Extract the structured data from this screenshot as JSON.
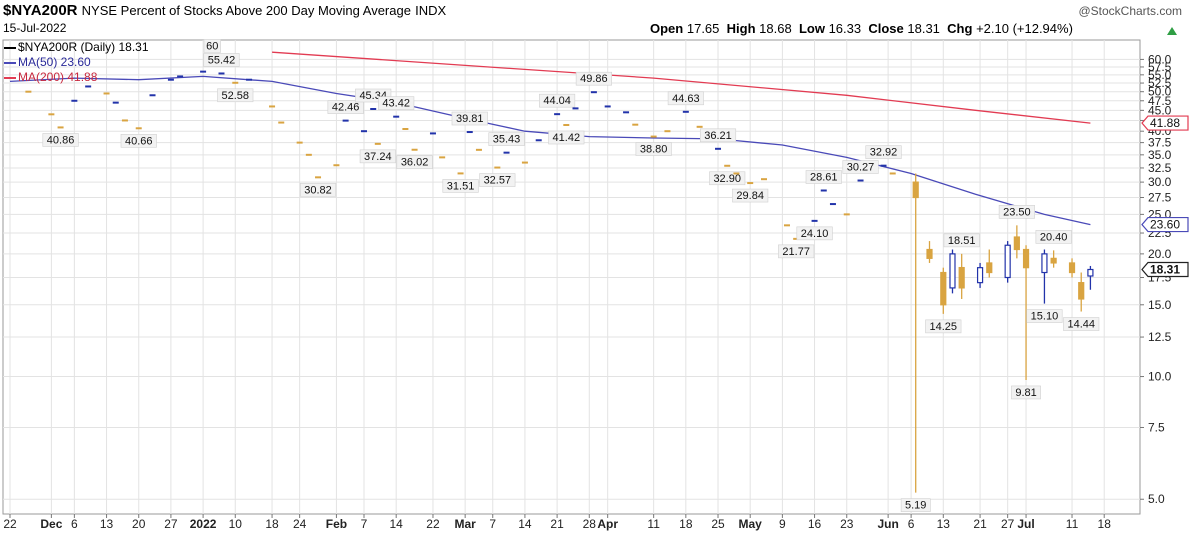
{
  "header": {
    "symbol": "$NYA200R",
    "description": "NYSE Percent of Stocks Above 200 Day Moving Average",
    "exchange": "INDX",
    "date": "15-Jul-2022",
    "brand": "@StockCharts.com",
    "open_label": "Open",
    "open": "17.65",
    "high_label": "High",
    "high": "18.68",
    "low_label": "Low",
    "low": "16.33",
    "close_label": "Close",
    "close": "18.31",
    "chg_label": "Chg",
    "chg": "+2.10 (+12.94%)"
  },
  "legend": {
    "main": "$NYA200R (Daily) 18.31",
    "ma50": "MA(50) 23.60",
    "ma200": "MA(200) 41.88"
  },
  "colors": {
    "up": "#2233aa",
    "down": "#d9a441",
    "ma50": "#4a4ab8",
    "ma200": "#e23b52",
    "grid": "#e3e3e3"
  },
  "chart_data": {
    "type": "candlestick",
    "y_scale": "log",
    "ylim": [
      4.6,
      64
    ],
    "y_ticks": [
      5.0,
      7.5,
      10.0,
      12.5,
      15.0,
      17.5,
      20.0,
      22.5,
      25.0,
      27.5,
      30.0,
      32.5,
      35.0,
      37.5,
      40.0,
      42.5,
      45.0,
      47.5,
      50.0,
      52.5,
      55.0,
      57.5,
      60.0
    ],
    "y_tick_labels": [
      "5.0",
      "7.5",
      "10.0",
      "12.5",
      "15.0",
      "17.5",
      "20.0",
      "22.5",
      "25.0",
      "27.5",
      "30.0",
      "32.5",
      "35.0",
      "37.5",
      "40.0",
      "42.5",
      "45.0",
      "47.5",
      "50.0",
      "52.5",
      "55.0",
      "57.5",
      "60.0"
    ],
    "x_labels": [
      {
        "date": "2021-11-22",
        "label": "22",
        "bold": false
      },
      {
        "date": "2021-12-01",
        "label": "Dec",
        "bold": true
      },
      {
        "date": "2021-12-06",
        "label": "6",
        "bold": false
      },
      {
        "date": "2021-12-13",
        "label": "13",
        "bold": false
      },
      {
        "date": "2021-12-20",
        "label": "20",
        "bold": false
      },
      {
        "date": "2021-12-27",
        "label": "27",
        "bold": false
      },
      {
        "date": "2022-01-03",
        "label": "2022",
        "bold": true
      },
      {
        "date": "2022-01-10",
        "label": "10",
        "bold": false
      },
      {
        "date": "2022-01-18",
        "label": "18",
        "bold": false
      },
      {
        "date": "2022-01-24",
        "label": "24",
        "bold": false
      },
      {
        "date": "2022-02-01",
        "label": "Feb",
        "bold": true
      },
      {
        "date": "2022-02-07",
        "label": "7",
        "bold": false
      },
      {
        "date": "2022-02-14",
        "label": "14",
        "bold": false
      },
      {
        "date": "2022-02-22",
        "label": "22",
        "bold": false
      },
      {
        "date": "2022-03-01",
        "label": "Mar",
        "bold": true
      },
      {
        "date": "2022-03-07",
        "label": "7",
        "bold": false
      },
      {
        "date": "2022-03-14",
        "label": "14",
        "bold": false
      },
      {
        "date": "2022-03-21",
        "label": "21",
        "bold": false
      },
      {
        "date": "2022-03-28",
        "label": "28",
        "bold": false
      },
      {
        "date": "2022-04-01",
        "label": "Apr",
        "bold": true
      },
      {
        "date": "2022-04-11",
        "label": "11",
        "bold": false
      },
      {
        "date": "2022-04-18",
        "label": "18",
        "bold": false
      },
      {
        "date": "2022-04-25",
        "label": "25",
        "bold": false
      },
      {
        "date": "2022-05-02",
        "label": "May",
        "bold": true
      },
      {
        "date": "2022-05-09",
        "label": "9",
        "bold": false
      },
      {
        "date": "2022-05-16",
        "label": "16",
        "bold": false
      },
      {
        "date": "2022-05-23",
        "label": "23",
        "bold": false
      },
      {
        "date": "2022-06-01",
        "label": "Jun",
        "bold": true
      },
      {
        "date": "2022-06-06",
        "label": "6",
        "bold": false
      },
      {
        "date": "2022-06-13",
        "label": "13",
        "bold": false
      },
      {
        "date": "2022-06-21",
        "label": "21",
        "bold": false
      },
      {
        "date": "2022-06-27",
        "label": "27",
        "bold": false
      },
      {
        "date": "2022-07-01",
        "label": "Jul",
        "bold": true
      },
      {
        "date": "2022-07-11",
        "label": "11",
        "bold": false
      },
      {
        "date": "2022-07-18",
        "label": "18",
        "bold": false
      }
    ],
    "date_range": [
      "2021-11-22",
      "2022-07-21"
    ],
    "ohlc": [
      {
        "date": "2021-11-26",
        "close": 50.0
      },
      {
        "date": "2021-12-01",
        "close": 44.0
      },
      {
        "date": "2021-12-03",
        "close": 40.86,
        "label": "40.86"
      },
      {
        "date": "2021-12-06",
        "close": 47.5,
        "dir": "up"
      },
      {
        "date": "2021-12-09",
        "close": 51.5,
        "dir": "up"
      },
      {
        "date": "2021-12-13",
        "close": 49.5
      },
      {
        "date": "2021-12-15",
        "close": 47.0,
        "dir": "up"
      },
      {
        "date": "2021-12-17",
        "close": 42.5
      },
      {
        "date": "2021-12-20",
        "close": 40.66,
        "label": "40.66"
      },
      {
        "date": "2021-12-23",
        "close": 49.0,
        "dir": "up"
      },
      {
        "date": "2021-12-27",
        "close": 53.5,
        "dir": "up"
      },
      {
        "date": "2021-12-29",
        "close": 54.5,
        "dir": "up"
      },
      {
        "date": "2022-01-03",
        "close": 56.0,
        "dir": "up"
      },
      {
        "date": "2022-01-05",
        "close": 60.0,
        "dir": "up",
        "label": "60"
      },
      {
        "date": "2022-01-07",
        "close": 55.42,
        "dir": "up",
        "label": "55.42"
      },
      {
        "date": "2022-01-10",
        "close": 52.58,
        "label": "52.58"
      },
      {
        "date": "2022-01-13",
        "close": 53.5,
        "dir": "up"
      },
      {
        "date": "2022-01-18",
        "close": 46.0
      },
      {
        "date": "2022-01-20",
        "close": 42.0
      },
      {
        "date": "2022-01-24",
        "close": 37.5
      },
      {
        "date": "2022-01-26",
        "close": 35.0
      },
      {
        "date": "2022-01-28",
        "close": 30.82,
        "label": "30.82"
      },
      {
        "date": "2022-02-01",
        "close": 33.0
      },
      {
        "date": "2022-02-03",
        "close": 42.46,
        "dir": "up",
        "label": "42.46"
      },
      {
        "date": "2022-02-07",
        "close": 40.0,
        "dir": "up"
      },
      {
        "date": "2022-02-09",
        "close": 45.34,
        "dir": "up",
        "label": "45.34"
      },
      {
        "date": "2022-02-10",
        "close": 37.24,
        "label": "37.24"
      },
      {
        "date": "2022-02-14",
        "close": 43.42,
        "dir": "up",
        "label": "43.42"
      },
      {
        "date": "2022-02-16",
        "close": 40.5
      },
      {
        "date": "2022-02-18",
        "close": 36.02,
        "label": "36.02"
      },
      {
        "date": "2022-02-22",
        "close": 39.5,
        "dir": "up"
      },
      {
        "date": "2022-02-24",
        "close": 34.5
      },
      {
        "date": "2022-02-28",
        "close": 31.51,
        "label": "31.51"
      },
      {
        "date": "2022-03-02",
        "close": 39.81,
        "dir": "up",
        "label": "39.81"
      },
      {
        "date": "2022-03-04",
        "close": 36.0
      },
      {
        "date": "2022-03-08",
        "close": 32.57,
        "label": "32.57"
      },
      {
        "date": "2022-03-10",
        "close": 35.43,
        "dir": "up",
        "label": "35.43"
      },
      {
        "date": "2022-03-14",
        "close": 33.5
      },
      {
        "date": "2022-03-17",
        "close": 38.0,
        "dir": "up"
      },
      {
        "date": "2022-03-21",
        "close": 44.04,
        "dir": "up",
        "label": "44.04"
      },
      {
        "date": "2022-03-23",
        "close": 41.42,
        "label": "41.42"
      },
      {
        "date": "2022-03-25",
        "close": 45.5,
        "dir": "up"
      },
      {
        "date": "2022-03-29",
        "close": 49.86,
        "dir": "up",
        "label": "49.86"
      },
      {
        "date": "2022-04-01",
        "close": 46.0,
        "dir": "up"
      },
      {
        "date": "2022-04-05",
        "close": 44.5,
        "dir": "up"
      },
      {
        "date": "2022-04-07",
        "close": 41.5
      },
      {
        "date": "2022-04-11",
        "close": 38.8,
        "label": "38.80"
      },
      {
        "date": "2022-04-14",
        "close": 40.0
      },
      {
        "date": "2022-04-18",
        "close": 44.63,
        "dir": "up",
        "label": "44.63"
      },
      {
        "date": "2022-04-21",
        "close": 41.0
      },
      {
        "date": "2022-04-25",
        "close": 36.21,
        "dir": "up",
        "label": "36.21"
      },
      {
        "date": "2022-04-27",
        "close": 32.9,
        "label": "32.90"
      },
      {
        "date": "2022-04-29",
        "close": 31.5
      },
      {
        "date": "2022-05-02",
        "close": 29.84,
        "label": "29.84"
      },
      {
        "date": "2022-05-05",
        "close": 30.5
      },
      {
        "date": "2022-05-10",
        "close": 23.5
      },
      {
        "date": "2022-05-12",
        "close": 21.77,
        "label": "21.77"
      },
      {
        "date": "2022-05-16",
        "close": 24.1,
        "dir": "up",
        "label": "24.10"
      },
      {
        "date": "2022-05-18",
        "close": 28.61,
        "dir": "up",
        "label": "28.61"
      },
      {
        "date": "2022-05-20",
        "close": 26.5,
        "dir": "up"
      },
      {
        "date": "2022-05-23",
        "close": 25.0
      },
      {
        "date": "2022-05-26",
        "close": 30.27,
        "dir": "up",
        "label": "30.27"
      },
      {
        "date": "2022-05-31",
        "close": 32.92,
        "dir": "up",
        "label": "32.92"
      },
      {
        "date": "2022-06-02",
        "close": 31.5
      },
      {
        "date": "2022-06-07",
        "open": 30.0,
        "high": 31.5,
        "low": 5.19,
        "close": 27.5,
        "label": "5.19"
      },
      {
        "date": "2022-06-10",
        "open": 20.5,
        "high": 21.5,
        "low": 19.0,
        "close": 19.5
      },
      {
        "date": "2022-06-13",
        "open": 18.0,
        "high": 18.5,
        "low": 14.25,
        "close": 15.0,
        "label": "14.25"
      },
      {
        "date": "2022-06-15",
        "open": 16.5,
        "high": 20.5,
        "low": 16.0,
        "close": 20.0,
        "dir": "up"
      },
      {
        "date": "2022-06-17",
        "open": 18.51,
        "high": 20.0,
        "low": 15.5,
        "close": 16.5,
        "label": "18.51"
      },
      {
        "date": "2022-06-21",
        "open": 17.0,
        "high": 19.0,
        "low": 16.5,
        "close": 18.5,
        "dir": "up"
      },
      {
        "date": "2022-06-23",
        "open": 19.0,
        "high": 20.5,
        "low": 17.5,
        "close": 18.0
      },
      {
        "date": "2022-06-27",
        "open": 17.5,
        "high": 21.5,
        "low": 17.0,
        "close": 21.0,
        "dir": "up"
      },
      {
        "date": "2022-06-29",
        "open": 22.0,
        "high": 23.5,
        "low": 19.5,
        "close": 20.5,
        "label": "23.50"
      },
      {
        "date": "2022-07-01",
        "open": 20.5,
        "high": 21.0,
        "low": 9.81,
        "close": 18.5,
        "label": "9.81"
      },
      {
        "date": "2022-07-05",
        "open": 18.0,
        "high": 20.5,
        "low": 15.1,
        "close": 20.0,
        "dir": "up",
        "label": "15.10"
      },
      {
        "date": "2022-07-07",
        "open": 19.5,
        "high": 20.4,
        "low": 18.5,
        "close": 19.0,
        "label": "20.40"
      },
      {
        "date": "2022-07-11",
        "open": 19.0,
        "high": 19.5,
        "low": 17.5,
        "close": 18.0
      },
      {
        "date": "2022-07-13",
        "open": 17.0,
        "high": 18.0,
        "low": 14.44,
        "close": 15.5,
        "label": "14.44"
      },
      {
        "date": "2022-07-15",
        "open": 17.65,
        "high": 18.68,
        "low": 16.33,
        "close": 18.31,
        "dir": "up"
      }
    ],
    "ma50": [
      {
        "date": "2021-11-22",
        "value": 53.0
      },
      {
        "date": "2021-12-06",
        "value": 54.0
      },
      {
        "date": "2021-12-20",
        "value": 53.5
      },
      {
        "date": "2022-01-03",
        "value": 54.5
      },
      {
        "date": "2022-01-18",
        "value": 53.0
      },
      {
        "date": "2022-02-01",
        "value": 49.5
      },
      {
        "date": "2022-02-14",
        "value": 47.0
      },
      {
        "date": "2022-03-01",
        "value": 43.0
      },
      {
        "date": "2022-03-14",
        "value": 40.0
      },
      {
        "date": "2022-03-28",
        "value": 38.8
      },
      {
        "date": "2022-04-11",
        "value": 38.5
      },
      {
        "date": "2022-04-25",
        "value": 38.3
      },
      {
        "date": "2022-05-09",
        "value": 37.0
      },
      {
        "date": "2022-05-23",
        "value": 34.5
      },
      {
        "date": "2022-06-06",
        "value": 31.5
      },
      {
        "date": "2022-06-20",
        "value": 28.0
      },
      {
        "date": "2022-07-05",
        "value": 25.0
      },
      {
        "date": "2022-07-15",
        "value": 23.6
      }
    ],
    "ma200": [
      {
        "date": "2022-01-18",
        "value": 62.5
      },
      {
        "date": "2022-03-01",
        "value": 58.0
      },
      {
        "date": "2022-04-11",
        "value": 54.0
      },
      {
        "date": "2022-05-23",
        "value": 49.0
      },
      {
        "date": "2022-06-20",
        "value": 45.0
      },
      {
        "date": "2022-07-15",
        "value": 41.88
      }
    ],
    "right_markers": [
      {
        "value": 41.88,
        "label": "41.88",
        "color": "#e23b52"
      },
      {
        "value": 23.6,
        "label": "23.60",
        "color": "#4a4ab8"
      },
      {
        "value": 18.31,
        "label": "18.31",
        "color": "#222222"
      }
    ]
  }
}
